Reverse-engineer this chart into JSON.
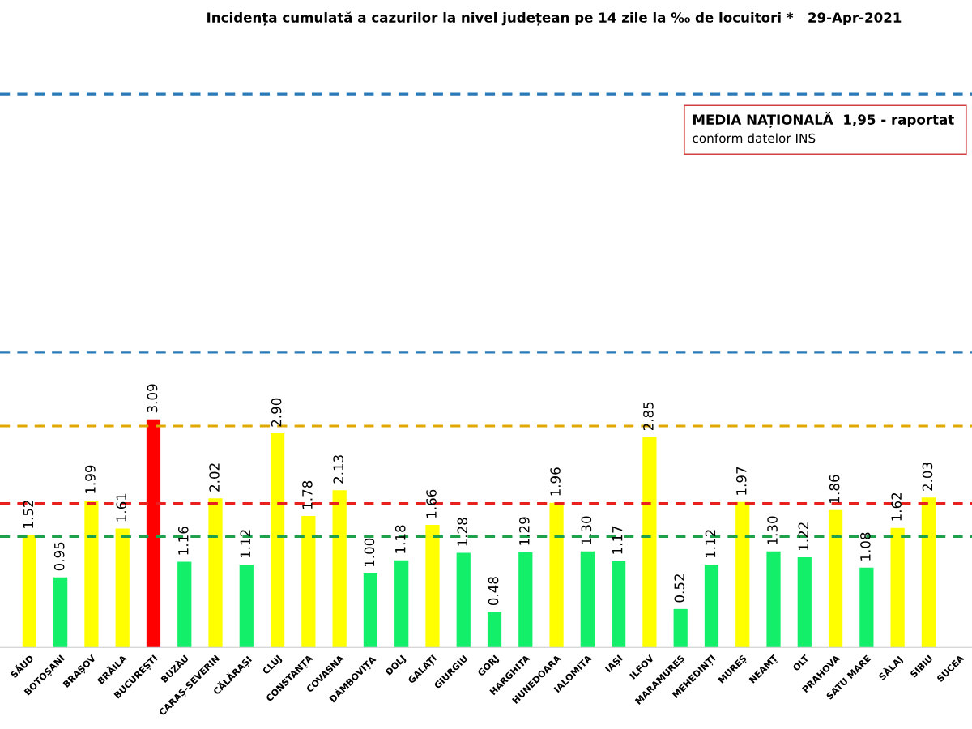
{
  "chart_data": {
    "type": "bar",
    "title": "Incidența cumulată a cazurilor la nivel județean pe 14 zile la ‰ de locuitori *   29-Apr-2021",
    "categories": [
      "SĂUD",
      "BOTOȘANI",
      "BRAȘOV",
      "BRĂILA",
      "BUCUREȘTI",
      "BUZĂU",
      "CARAȘ-SEVERIN",
      "CĂLĂRAȘI",
      "CLUJ",
      "CONSTANȚA",
      "COVASNA",
      "DÂMBOVIȚA",
      "DOLJ",
      "GALAȚI",
      "GIURGIU",
      "GORJ",
      "HARGHITA",
      "HUNEDOARA",
      "IALOMIȚA",
      "IAȘI",
      "ILFOV",
      "MARAMUREȘ",
      "MEHEDINȚI",
      "MUREȘ",
      "NEAMȚ",
      "OLT",
      "PRAHOVA",
      "SATU MARE",
      "SĂLAJ",
      "SIBIU",
      "SUCEA"
    ],
    "values": [
      1.52,
      0.95,
      1.99,
      1.61,
      3.09,
      1.16,
      2.02,
      1.12,
      2.9,
      1.78,
      2.13,
      1.0,
      1.18,
      1.66,
      1.28,
      0.48,
      1.29,
      1.96,
      1.3,
      1.17,
      2.85,
      0.52,
      1.12,
      1.97,
      1.3,
      1.22,
      1.86,
      1.08,
      1.62,
      2.03,
      null
    ],
    "colors": [
      "#ffff00",
      "#14ef6a",
      "#ffff00",
      "#ffff00",
      "#ff0000",
      "#14ef6a",
      "#ffff00",
      "#14ef6a",
      "#ffff00",
      "#ffff00",
      "#ffff00",
      "#14ef6a",
      "#14ef6a",
      "#ffff00",
      "#14ef6a",
      "#14ef6a",
      "#14ef6a",
      "#ffff00",
      "#14ef6a",
      "#14ef6a",
      "#ffff00",
      "#14ef6a",
      "#14ef6a",
      "#ffff00",
      "#14ef6a",
      "#14ef6a",
      "#ffff00",
      "#14ef6a",
      "#ffff00",
      "#ffff00",
      "#ffff00"
    ],
    "value_labels": [
      "1.52",
      "0.95",
      "1.99",
      "1.61",
      "3.09",
      "1.16",
      "2.02",
      "1.12",
      "2.90",
      "1.78",
      "2.13",
      "1.00",
      "1.18",
      "1.66",
      "1.28",
      "0.48",
      "1.29",
      "1.96",
      "1.30",
      "1.17",
      "2.85",
      "0.52",
      "1.12",
      "1.97",
      "1.30",
      "1.22",
      "1.86",
      "1.08",
      "1.62",
      "2.03",
      null
    ],
    "tick_labels": "x",
    "ref_lines": [
      {
        "axis": "y",
        "value": 1.5,
        "color": "#1fa04a",
        "line_style": "dashed"
      },
      {
        "axis": "y",
        "value": 1.95,
        "color": "#e8201e",
        "line_style": "dashed"
      },
      {
        "axis": "y",
        "value": 3,
        "color": "#e0a800",
        "line_style": "dashed"
      },
      {
        "axis": "y",
        "value": 4,
        "color": "#2a7ab8",
        "line_style": "dashed"
      },
      {
        "axis": "y",
        "value": 7.5,
        "color": "#2a7ab8",
        "line_style": "dashed"
      }
    ],
    "annotations": [
      "MEDIA NAȚIONALĂ  1,95 - raportat",
      "conform datelor INS"
    ],
    "grid": false,
    "legend": false
  }
}
